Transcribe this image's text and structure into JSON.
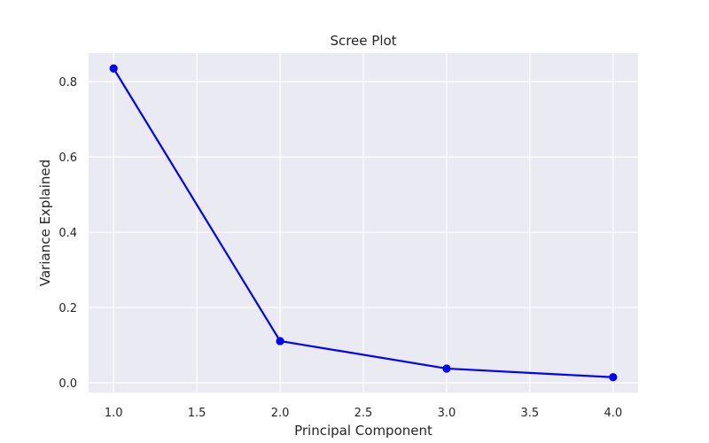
{
  "chart_data": {
    "type": "line",
    "title": "Scree Plot",
    "xlabel": "Principal Component",
    "ylabel": "Variance Explained",
    "x": [
      1,
      2,
      3,
      4
    ],
    "series": [
      {
        "values": [
          0.835,
          0.111,
          0.038,
          0.015
        ],
        "color": "#0000ff",
        "marker": "circle"
      }
    ],
    "xlim": [
      0.85,
      4.15
    ],
    "ylim": [
      -0.0256,
      0.8756
    ],
    "xticks": [
      "1.0",
      "1.5",
      "2.0",
      "2.5",
      "3.0",
      "3.5",
      "4.0"
    ],
    "yticks": [
      "0.0",
      "0.2",
      "0.4",
      "0.6",
      "0.8"
    ],
    "grid": true,
    "background": "#eaeaf2",
    "grid_color": "#ffffff"
  }
}
